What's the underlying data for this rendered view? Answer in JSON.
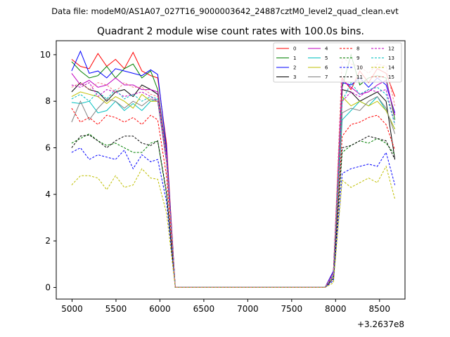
{
  "chart_data": {
    "type": "line",
    "suptitle": "Data file: modeM0/AS1A07_027T16_9000003642_24887cztM0_level2_quad_clean.evt",
    "title": "Quadrant 2 module wise count rates with 100.0s bins.",
    "xlabel": "",
    "ylabel": "",
    "x_offset_label": "+3.2637e8",
    "xlim": [
      4820,
      8790
    ],
    "ylim": [
      -0.5,
      10.6
    ],
    "xticks": [
      5000,
      5500,
      6000,
      6500,
      7000,
      7500,
      8000,
      8500
    ],
    "xtick_labels": [
      "5000",
      "5500",
      "6000",
      "6500",
      "7000",
      "7500",
      "8000",
      "8500"
    ],
    "yticks": [
      0,
      2,
      4,
      6,
      8,
      10
    ],
    "ytick_labels": [
      "0",
      "2",
      "4",
      "6",
      "8",
      "10"
    ],
    "legend_position": "upper right",
    "grid": false,
    "x": [
      4995,
      5095,
      5195,
      5295,
      5395,
      5495,
      5595,
      5695,
      5795,
      5895,
      5975,
      6075,
      6175,
      7880,
      7975,
      8075,
      8175,
      8275,
      8375,
      8475,
      8575,
      8675
    ],
    "series": [
      {
        "name": "0",
        "color": "#ff0000",
        "dash": false,
        "values": [
          9.8,
          9.5,
          9.4,
          10.05,
          9.5,
          9.8,
          9.4,
          10.1,
          9.3,
          9.1,
          9.0,
          6.2,
          0.0,
          0.0,
          0.7,
          9.0,
          8.5,
          9.3,
          8.8,
          9.4,
          9.2,
          8.2
        ]
      },
      {
        "name": "1",
        "color": "#008000",
        "dash": false,
        "values": [
          9.7,
          9.3,
          9.0,
          9.1,
          9.5,
          9.0,
          9.4,
          9.6,
          9.0,
          9.3,
          8.5,
          5.8,
          0.0,
          0.0,
          0.6,
          8.6,
          10.0,
          8.7,
          9.0,
          9.1,
          9.0,
          7.2
        ]
      },
      {
        "name": "2",
        "color": "#0000ff",
        "dash": false,
        "values": [
          9.3,
          10.15,
          9.2,
          9.3,
          9.0,
          9.4,
          9.3,
          9.2,
          9.1,
          9.35,
          9.15,
          6.0,
          0.0,
          0.0,
          0.7,
          8.8,
          8.7,
          9.0,
          8.6,
          9.0,
          8.7,
          7.5
        ]
      },
      {
        "name": "3",
        "color": "#000000",
        "dash": false,
        "values": [
          8.4,
          8.8,
          8.5,
          8.4,
          8.0,
          8.4,
          8.5,
          8.2,
          8.7,
          8.5,
          8.3,
          5.6,
          0.0,
          0.0,
          0.5,
          8.5,
          8.4,
          8.0,
          8.2,
          8.4,
          8.0,
          5.5
        ]
      },
      {
        "name": "4",
        "color": "#bf00bf",
        "dash": false,
        "values": [
          9.2,
          8.7,
          8.9,
          8.6,
          8.7,
          9.0,
          8.7,
          8.7,
          8.5,
          8.5,
          8.4,
          5.7,
          0.0,
          0.0,
          0.6,
          8.9,
          8.6,
          8.3,
          8.4,
          8.7,
          8.9,
          7.4
        ]
      },
      {
        "name": "5",
        "color": "#00bfbf",
        "dash": false,
        "values": [
          7.95,
          7.9,
          8.0,
          7.5,
          7.6,
          8.0,
          7.6,
          7.9,
          7.6,
          8.0,
          8.1,
          5.5,
          0.0,
          0.0,
          0.5,
          7.2,
          7.6,
          8.0,
          7.8,
          8.2,
          7.6,
          6.8
        ]
      },
      {
        "name": "6",
        "color": "#bfbf00",
        "dash": false,
        "values": [
          8.2,
          8.4,
          8.3,
          8.2,
          7.9,
          8.2,
          8.0,
          7.7,
          8.3,
          8.0,
          8.0,
          5.4,
          0.0,
          0.0,
          0.5,
          8.2,
          7.8,
          8.0,
          7.8,
          8.0,
          7.6,
          6.8
        ]
      },
      {
        "name": "7",
        "color": "#808080",
        "dash": false,
        "values": [
          7.1,
          8.0,
          7.2,
          7.7,
          8.1,
          8.0,
          7.7,
          8.0,
          7.8,
          8.1,
          8.0,
          5.4,
          0.0,
          0.0,
          0.4,
          7.5,
          7.7,
          7.6,
          8.0,
          8.2,
          7.7,
          6.6
        ]
      },
      {
        "name": "8",
        "color": "#ff0000",
        "dash": true,
        "values": [
          7.7,
          7.1,
          7.3,
          7.0,
          7.4,
          7.3,
          7.1,
          7.3,
          7.0,
          7.4,
          7.2,
          4.8,
          0.0,
          0.0,
          0.4,
          6.5,
          7.0,
          7.1,
          7.3,
          7.4,
          7.0,
          5.9
        ]
      },
      {
        "name": "9",
        "color": "#008000",
        "dash": true,
        "values": [
          6.2,
          6.4,
          6.6,
          6.3,
          6.1,
          6.2,
          6.0,
          5.8,
          5.8,
          6.2,
          6.3,
          4.0,
          0.0,
          0.0,
          0.3,
          5.8,
          6.1,
          6.3,
          6.2,
          6.4,
          6.2,
          5.7
        ]
      },
      {
        "name": "10",
        "color": "#0000ff",
        "dash": true,
        "values": [
          5.8,
          6.0,
          5.5,
          5.7,
          5.6,
          5.5,
          5.9,
          5.1,
          5.7,
          5.4,
          5.5,
          3.7,
          0.0,
          0.0,
          0.3,
          4.9,
          5.1,
          5.2,
          5.3,
          5.2,
          5.8,
          4.4
        ]
      },
      {
        "name": "11",
        "color": "#000000",
        "dash": true,
        "values": [
          6.0,
          6.5,
          6.55,
          6.3,
          6.0,
          6.3,
          6.5,
          6.5,
          6.2,
          6.1,
          6.3,
          4.1,
          0.0,
          0.0,
          0.4,
          6.0,
          6.1,
          6.3,
          6.5,
          6.4,
          6.3,
          5.5
        ]
      },
      {
        "name": "12",
        "color": "#bf00bf",
        "dash": true,
        "values": [
          8.7,
          8.6,
          8.8,
          8.2,
          8.5,
          8.4,
          8.2,
          8.3,
          8.4,
          8.2,
          8.0,
          5.4,
          0.0,
          0.0,
          0.5,
          8.0,
          8.4,
          8.2,
          8.5,
          8.4,
          8.5,
          7.0
        ]
      },
      {
        "name": "13",
        "color": "#00bfbf",
        "dash": true,
        "values": [
          8.1,
          8.3,
          8.0,
          8.4,
          8.1,
          8.5,
          8.1,
          8.3,
          8.0,
          8.2,
          8.1,
          5.5,
          0.0,
          0.0,
          0.5,
          8.0,
          8.8,
          8.3,
          8.5,
          8.6,
          8.3,
          7.0
        ]
      },
      {
        "name": "14",
        "color": "#bfbf00",
        "dash": true,
        "values": [
          4.4,
          4.8,
          4.8,
          4.7,
          4.2,
          4.8,
          4.3,
          4.4,
          5.1,
          4.7,
          4.65,
          3.2,
          0.0,
          0.0,
          0.2,
          4.6,
          4.3,
          4.5,
          4.7,
          4.5,
          5.2,
          3.8
        ]
      },
      {
        "name": "15",
        "color": "#f08080",
        "dash": true,
        "values": [
          8.6,
          8.8,
          8.5,
          8.8,
          8.7,
          8.4,
          8.8,
          8.6,
          8.6,
          8.3,
          8.2,
          5.6,
          0.0,
          0.0,
          0.6,
          9.9,
          9.6,
          9.5,
          9.2,
          9.6,
          9.5,
          7.8
        ]
      }
    ]
  }
}
